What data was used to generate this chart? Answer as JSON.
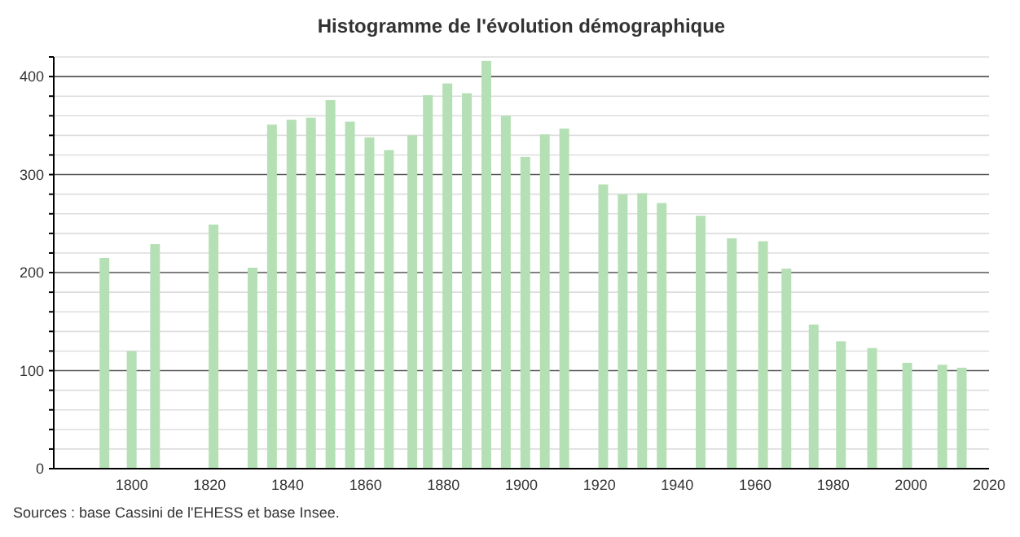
{
  "chart_data": {
    "type": "bar",
    "title": "Histogramme de l'évolution démographique",
    "x": [
      1793,
      1800,
      1806,
      1821,
      1831,
      1836,
      1841,
      1846,
      1851,
      1856,
      1861,
      1866,
      1872,
      1876,
      1881,
      1886,
      1891,
      1896,
      1901,
      1906,
      1911,
      1921,
      1926,
      1931,
      1936,
      1946,
      1954,
      1962,
      1968,
      1975,
      1982,
      1990,
      1999,
      2008,
      2013
    ],
    "values": [
      215,
      120,
      229,
      249,
      205,
      351,
      356,
      358,
      376,
      354,
      338,
      325,
      340,
      381,
      393,
      383,
      416,
      360,
      318,
      341,
      347,
      290,
      280,
      281,
      271,
      258,
      235,
      232,
      204,
      147,
      130,
      123,
      108,
      106,
      103
    ],
    "color": "#b5e0b5",
    "xlim": [
      1780,
      2020
    ],
    "xticks": [
      1800,
      1820,
      1840,
      1860,
      1880,
      1900,
      1920,
      1940,
      1960,
      1980,
      2000,
      2020
    ],
    "ylim": [
      0,
      420
    ],
    "yticks": [
      0,
      {
        "value": 20,
        "label": null
      },
      {
        "value": 40,
        "label": null
      },
      {
        "value": 60,
        "label": null
      },
      {
        "value": 80,
        "label": null
      },
      100,
      {
        "value": 120,
        "label": null
      },
      {
        "value": 140,
        "label": null
      },
      {
        "value": 160,
        "label": null
      },
      {
        "value": 180,
        "label": null
      },
      200,
      {
        "value": 220,
        "label": null
      },
      {
        "value": 240,
        "label": null
      },
      {
        "value": 260,
        "label": null
      },
      {
        "value": 280,
        "label": null
      },
      300,
      {
        "value": 320,
        "label": null
      },
      {
        "value": 340,
        "label": null
      },
      {
        "value": 360,
        "label": null
      },
      {
        "value": 380,
        "label": null
      },
      400,
      {
        "value": 420,
        "label": null
      }
    ],
    "grid": "y",
    "annotations": [
      "Sources : base Cassini de l'EHESS et base Insee."
    ]
  }
}
